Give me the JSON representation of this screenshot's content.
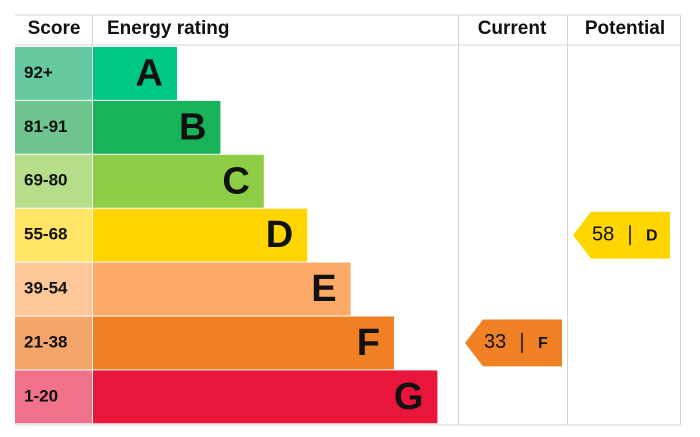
{
  "header": {
    "score": "Score",
    "energy_rating": "Energy rating",
    "current": "Current",
    "potential": "Potential"
  },
  "bands": [
    {
      "range": "92+",
      "letter": "A",
      "color": "#00c781",
      "light": "#66c9a0"
    },
    {
      "range": "81-91",
      "letter": "B",
      "color": "#19b459",
      "light": "#70c58e"
    },
    {
      "range": "69-80",
      "letter": "C",
      "color": "#8dce46",
      "light": "#b6dd8a"
    },
    {
      "range": "55-68",
      "letter": "D",
      "color": "#ffd500",
      "light": "#ffe466"
    },
    {
      "range": "39-54",
      "letter": "E",
      "color": "#fcaa65",
      "light": "#fdc79a"
    },
    {
      "range": "21-38",
      "letter": "F",
      "color": "#ef8023",
      "light": "#f4a66a"
    },
    {
      "range": "1-20",
      "letter": "G",
      "color": "#e9153b",
      "light": "#f0718a"
    }
  ],
  "current": {
    "score": 33,
    "rating": "F"
  },
  "potential": {
    "score": 58,
    "rating": "D"
  }
}
